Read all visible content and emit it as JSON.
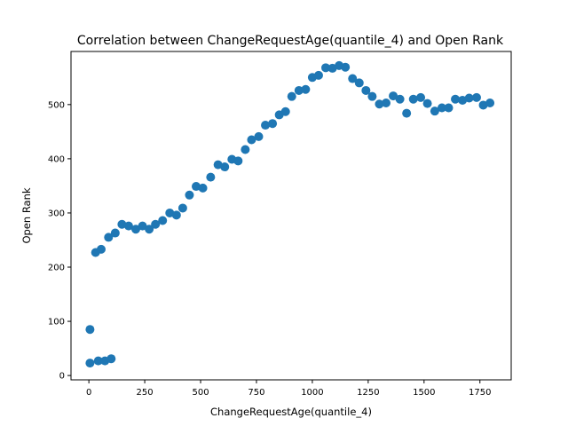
{
  "chart_data": {
    "type": "scatter",
    "title": "Correlation between ChangeRequestAge(quantile_4) and Open Rank",
    "xlabel": "ChangeRequestAge(quantile_4)",
    "ylabel": "Open Rank",
    "xlim": [
      -80,
      1890
    ],
    "ylim": [
      -8,
      598
    ],
    "xticks": [
      0,
      250,
      500,
      750,
      1000,
      1250,
      1500,
      1750
    ],
    "yticks": [
      0,
      100,
      200,
      300,
      400,
      500
    ],
    "grid": false,
    "marker_color": "#1f77b4",
    "series": [
      {
        "points": [
          [
            5,
            85
          ],
          [
            5,
            23
          ],
          [
            30,
            227
          ],
          [
            42,
            27
          ],
          [
            55,
            233
          ],
          [
            72,
            27
          ],
          [
            88,
            255
          ],
          [
            100,
            31
          ],
          [
            118,
            263
          ],
          [
            148,
            279
          ],
          [
            178,
            276
          ],
          [
            210,
            270
          ],
          [
            240,
            276
          ],
          [
            270,
            270
          ],
          [
            298,
            279
          ],
          [
            330,
            286
          ],
          [
            362,
            300
          ],
          [
            392,
            296
          ],
          [
            420,
            309
          ],
          [
            450,
            333
          ],
          [
            480,
            349
          ],
          [
            510,
            346
          ],
          [
            545,
            366
          ],
          [
            578,
            389
          ],
          [
            608,
            385
          ],
          [
            640,
            399
          ],
          [
            668,
            396
          ],
          [
            700,
            417
          ],
          [
            728,
            435
          ],
          [
            760,
            441
          ],
          [
            790,
            462
          ],
          [
            822,
            465
          ],
          [
            852,
            481
          ],
          [
            880,
            487
          ],
          [
            908,
            515
          ],
          [
            940,
            526
          ],
          [
            970,
            528
          ],
          [
            1000,
            550
          ],
          [
            1028,
            554
          ],
          [
            1060,
            568
          ],
          [
            1090,
            567
          ],
          [
            1120,
            572
          ],
          [
            1148,
            569
          ],
          [
            1180,
            548
          ],
          [
            1210,
            540
          ],
          [
            1240,
            526
          ],
          [
            1268,
            515
          ],
          [
            1300,
            501
          ],
          [
            1330,
            503
          ],
          [
            1362,
            516
          ],
          [
            1392,
            510
          ],
          [
            1422,
            484
          ],
          [
            1452,
            510
          ],
          [
            1485,
            513
          ],
          [
            1515,
            502
          ],
          [
            1548,
            488
          ],
          [
            1580,
            494
          ],
          [
            1610,
            494
          ],
          [
            1640,
            510
          ],
          [
            1672,
            508
          ],
          [
            1702,
            512
          ],
          [
            1735,
            513
          ],
          [
            1765,
            499
          ],
          [
            1795,
            503
          ]
        ]
      }
    ]
  }
}
